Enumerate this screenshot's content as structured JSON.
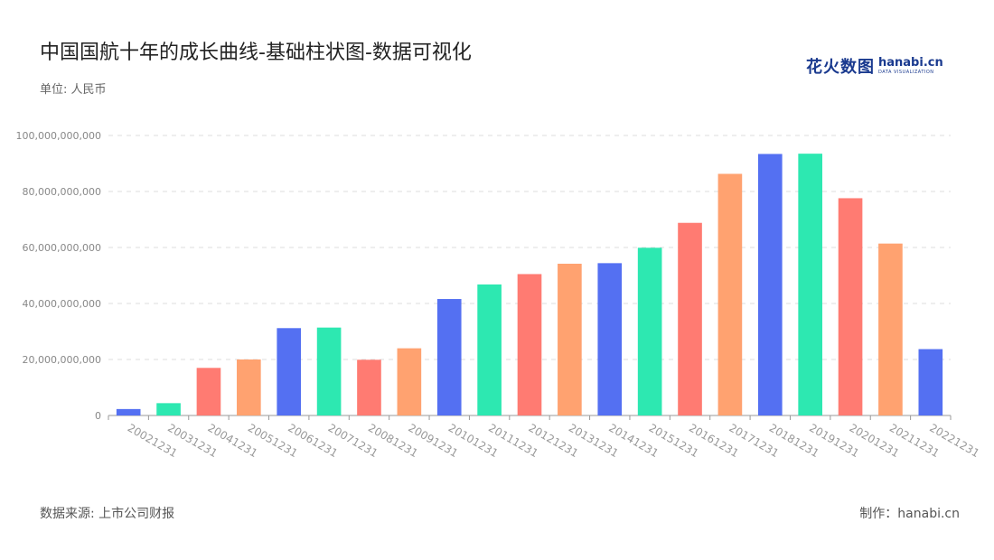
{
  "header": {
    "title": "中国国航十年的成长曲线-基础柱状图-数据可视化",
    "unit": "单位: 人民币"
  },
  "brand": {
    "name_cn": "花火数图",
    "name_en": "hanabi.cn",
    "tagline": "DATA VISUALIZATION"
  },
  "footer": {
    "source": "数据来源: 上市公司财报",
    "credit": "制作：hanabi.cn"
  },
  "chart_data": {
    "type": "bar",
    "categories": [
      "20021231",
      "20031231",
      "20041231",
      "20051231",
      "20061231",
      "20071231",
      "20081231",
      "20091231",
      "20101231",
      "20111231",
      "20121231",
      "20131231",
      "20141231",
      "20151231",
      "20161231",
      "20171231",
      "20181231",
      "20191231",
      "20201231",
      "20211231",
      "20221231"
    ],
    "values": [
      2300000000,
      4400000000,
      17000000000,
      20000000000,
      31200000000,
      31400000000,
      19900000000,
      24000000000,
      41600000000,
      46800000000,
      50500000000,
      54200000000,
      54400000000,
      59900000000,
      68800000000,
      86300000000,
      93400000000,
      93500000000,
      77600000000,
      61400000000,
      23700000000
    ],
    "colors": [
      "#5470f2",
      "#2de8b1",
      "#ff7b72",
      "#ffa270"
    ],
    "ylim": [
      0,
      100000000000
    ],
    "yticks": [
      0,
      20000000000,
      40000000000,
      60000000000,
      80000000000,
      100000000000
    ],
    "ytick_labels": [
      "0",
      "20,000,000,000",
      "40,000,000,000",
      "60,000,000,000",
      "80,000,000,000",
      "100,000,000,000"
    ],
    "grid": true,
    "xlabel": "",
    "ylabel": ""
  }
}
